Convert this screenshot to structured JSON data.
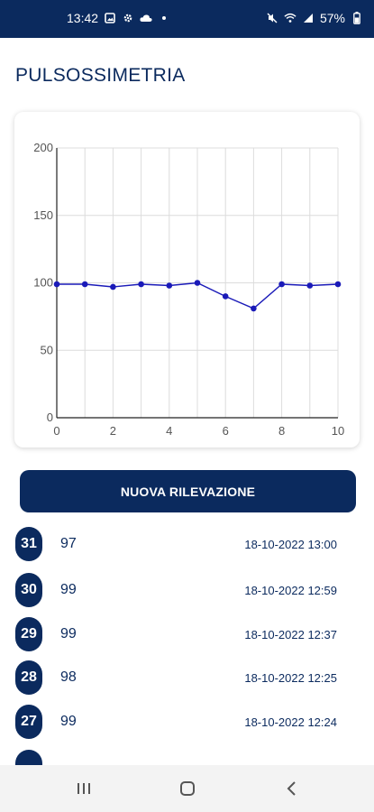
{
  "status_bar": {
    "time": "13:42",
    "battery": "57%"
  },
  "page": {
    "title": "PULSOSSIMETRIA"
  },
  "chart_data": {
    "type": "line",
    "x": [
      0,
      1,
      2,
      3,
      4,
      5,
      6,
      7,
      8,
      9,
      10
    ],
    "series": [
      {
        "values": [
          99,
          99,
          97,
          99,
          98,
          100,
          90,
          81,
          99,
          98,
          99
        ]
      }
    ],
    "xlim": [
      0,
      10
    ],
    "ylim": [
      0,
      200
    ],
    "xticks": [
      "0",
      "2",
      "4",
      "6",
      "8",
      "10"
    ],
    "yticks": [
      "0",
      "50",
      "100",
      "150",
      "200"
    ],
    "grid": true,
    "line_color": "#1a1ab8"
  },
  "actions": {
    "new_measurement": "NUOVA RILEVAZIONE"
  },
  "measurements": [
    {
      "id": "31",
      "value": "97",
      "date": "18-10-2022 13:00"
    },
    {
      "id": "30",
      "value": "99",
      "date": "18-10-2022 12:59"
    },
    {
      "id": "29",
      "value": "99",
      "date": "18-10-2022 12:37"
    },
    {
      "id": "28",
      "value": "98",
      "date": "18-10-2022 12:25"
    },
    {
      "id": "27",
      "value": "99",
      "date": "18-10-2022 12:24"
    }
  ],
  "colors": {
    "primary": "#0b2a5e",
    "line": "#1a1ab8"
  }
}
